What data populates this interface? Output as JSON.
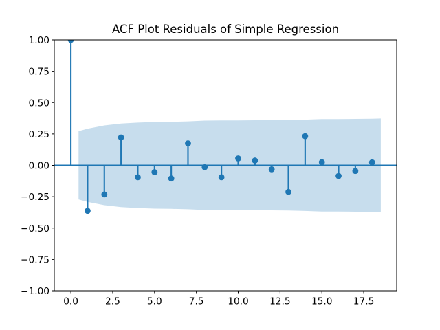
{
  "chart_data": {
    "type": "stem",
    "title": "ACF Plot Residuals of Simple Regression",
    "xlabel": "",
    "ylabel": "",
    "x": [
      0,
      1,
      2,
      3,
      4,
      5,
      6,
      7,
      8,
      9,
      10,
      11,
      12,
      13,
      14,
      15,
      16,
      17,
      18
    ],
    "values": [
      1.0,
      -0.363,
      -0.232,
      0.222,
      -0.095,
      -0.055,
      -0.105,
      0.175,
      -0.015,
      -0.095,
      0.055,
      0.038,
      -0.032,
      -0.212,
      0.232,
      0.025,
      -0.085,
      -0.045,
      0.024
    ],
    "confidence_band": {
      "x": [
        0.46,
        1,
        2,
        3,
        4,
        5,
        6,
        7,
        8,
        9,
        10,
        11,
        12,
        13,
        14,
        15,
        16,
        17,
        18,
        18.52
      ],
      "half_width": [
        0.272,
        0.292,
        0.318,
        0.333,
        0.34,
        0.345,
        0.347,
        0.35,
        0.356,
        0.357,
        0.358,
        0.359,
        0.359,
        0.36,
        0.364,
        0.368,
        0.369,
        0.37,
        0.371,
        0.373
      ]
    },
    "xlim": [
      -0.99,
      19.47
    ],
    "ylim": [
      -1.0,
      1.0
    ],
    "x_ticks": {
      "values": [
        0,
        2.5,
        5,
        7.5,
        10,
        12.5,
        15,
        17.5
      ],
      "labels": [
        "0.0",
        "2.5",
        "5.0",
        "7.5",
        "10.0",
        "12.5",
        "15.0",
        "17.5"
      ]
    },
    "y_ticks": {
      "values": [
        1.0,
        0.75,
        0.5,
        0.25,
        0.0,
        -0.25,
        -0.5,
        -0.75,
        -1.0
      ],
      "labels": [
        "1.00",
        "0.75",
        "0.50",
        "0.25",
        "0.00",
        "−0.25",
        "−0.50",
        "−0.75",
        "−1.00"
      ]
    },
    "grid": false,
    "legend": null,
    "colors": {
      "line": "#1f77b4",
      "marker": "#1f77b4",
      "band": "#c7dded",
      "frame": "#000000",
      "background": "#ffffff"
    }
  }
}
